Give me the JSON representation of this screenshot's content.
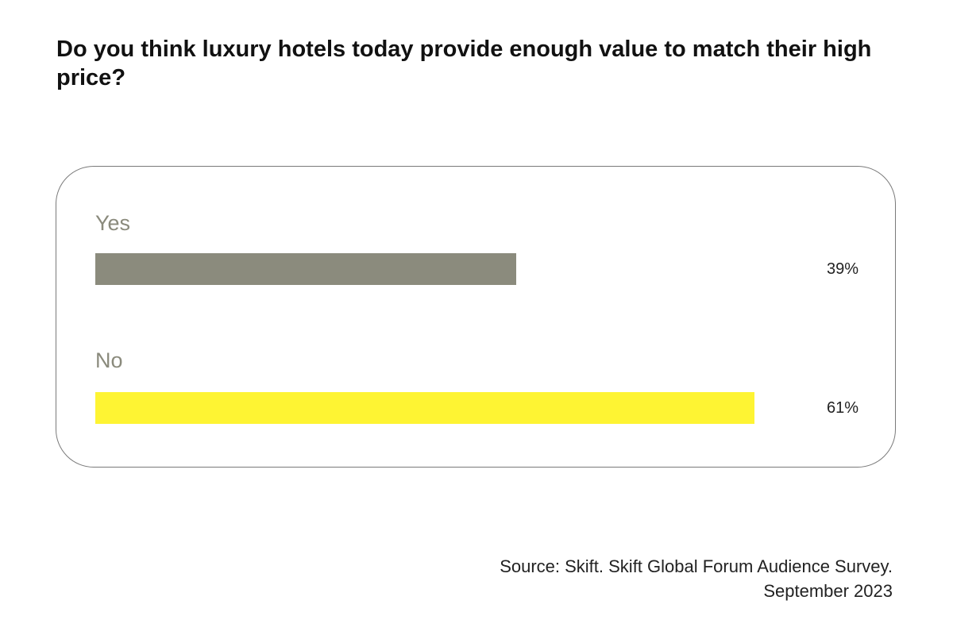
{
  "chart_data": {
    "type": "bar",
    "orientation": "horizontal",
    "title": "Do you think luxury hotels today provide enough value to match their high price?",
    "categories": [
      "Yes",
      "No"
    ],
    "values": [
      39,
      61
    ],
    "value_labels": [
      "39%",
      "61%"
    ],
    "colors": [
      "#8b8b7d",
      "#fef433"
    ],
    "xlim": [
      0,
      100
    ],
    "grid": false,
    "legend": "none"
  },
  "source": {
    "line1": "Source: Skift. Skift Global Forum Audience Survey.",
    "line2": "September 2023"
  }
}
